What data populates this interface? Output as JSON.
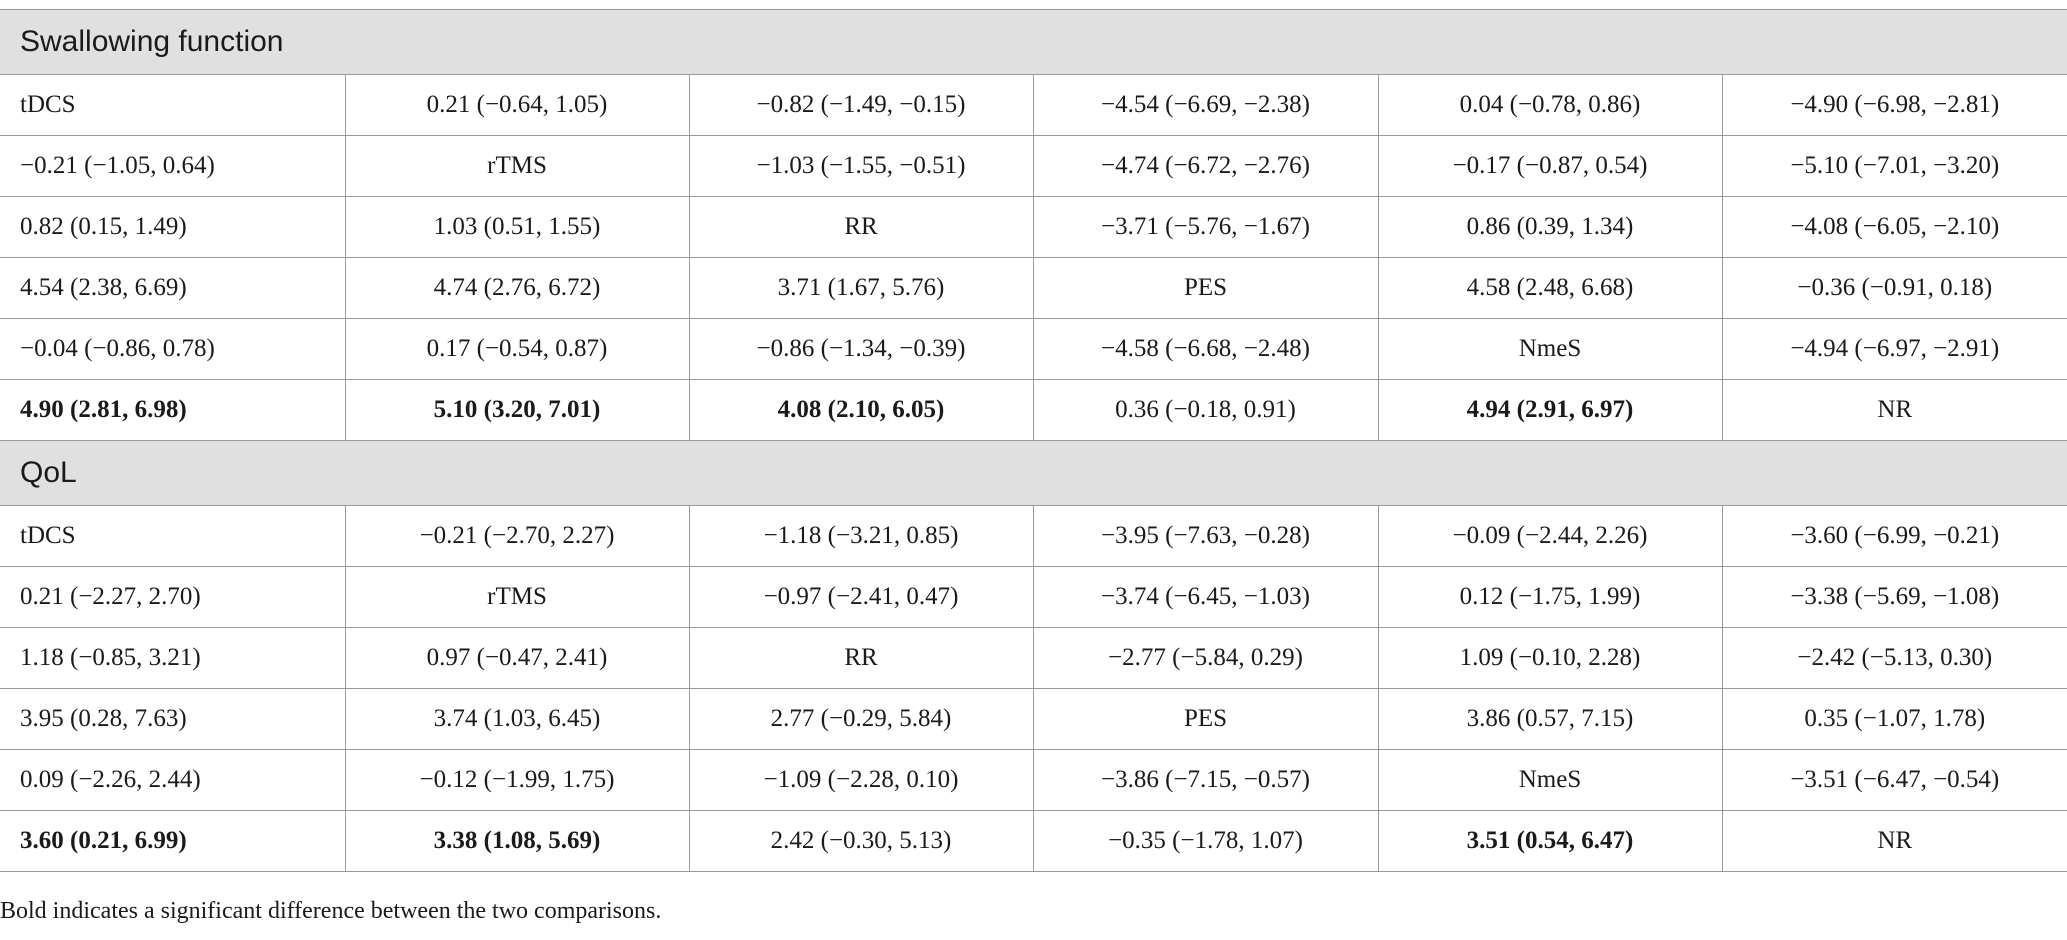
{
  "sections": [
    {
      "title": "Swallowing function",
      "rows": [
        {
          "cells": [
            "tDCS",
            "0.21 (−0.64, 1.05)",
            "−0.82 (−1.49, −0.15)",
            "−4.54 (−6.69, −2.38)",
            "0.04 (−0.78, 0.86)",
            "−4.90 (−6.98, −2.81)"
          ],
          "bold": [
            false,
            false,
            false,
            false,
            false,
            false
          ]
        },
        {
          "cells": [
            "−0.21 (−1.05, 0.64)",
            "rTMS",
            "−1.03 (−1.55, −0.51)",
            "−4.74 (−6.72, −2.76)",
            "−0.17 (−0.87, 0.54)",
            "−5.10 (−7.01, −3.20)"
          ],
          "bold": [
            false,
            false,
            false,
            false,
            false,
            false
          ]
        },
        {
          "cells": [
            "0.82 (0.15, 1.49)",
            "1.03 (0.51, 1.55)",
            "RR",
            "−3.71 (−5.76, −1.67)",
            "0.86 (0.39, 1.34)",
            "−4.08 (−6.05, −2.10)"
          ],
          "bold": [
            false,
            false,
            false,
            false,
            false,
            false
          ]
        },
        {
          "cells": [
            "4.54 (2.38, 6.69)",
            "4.74 (2.76, 6.72)",
            "3.71 (1.67, 5.76)",
            "PES",
            "4.58 (2.48, 6.68)",
            "−0.36 (−0.91, 0.18)"
          ],
          "bold": [
            false,
            false,
            false,
            false,
            false,
            false
          ]
        },
        {
          "cells": [
            "−0.04 (−0.86, 0.78)",
            "0.17 (−0.54, 0.87)",
            "−0.86 (−1.34, −0.39)",
            "−4.58 (−6.68, −2.48)",
            "NmeS",
            "−4.94 (−6.97, −2.91)"
          ],
          "bold": [
            false,
            false,
            false,
            false,
            false,
            false
          ]
        },
        {
          "cells": [
            "4.90 (2.81, 6.98)",
            "5.10 (3.20, 7.01)",
            "4.08 (2.10, 6.05)",
            "0.36 (−0.18, 0.91)",
            "4.94 (2.91, 6.97)",
            "NR"
          ],
          "bold": [
            true,
            true,
            true,
            false,
            true,
            false
          ]
        }
      ]
    },
    {
      "title": "QoL",
      "rows": [
        {
          "cells": [
            "tDCS",
            "−0.21 (−2.70, 2.27)",
            "−1.18 (−3.21, 0.85)",
            "−3.95 (−7.63, −0.28)",
            "−0.09 (−2.44, 2.26)",
            "−3.60 (−6.99, −0.21)"
          ],
          "bold": [
            false,
            false,
            false,
            false,
            false,
            false
          ]
        },
        {
          "cells": [
            "0.21 (−2.27, 2.70)",
            "rTMS",
            "−0.97 (−2.41, 0.47)",
            "−3.74 (−6.45, −1.03)",
            "0.12 (−1.75, 1.99)",
            "−3.38 (−5.69, −1.08)"
          ],
          "bold": [
            false,
            false,
            false,
            false,
            false,
            false
          ]
        },
        {
          "cells": [
            "1.18 (−0.85, 3.21)",
            "0.97 (−0.47, 2.41)",
            "RR",
            "−2.77 (−5.84, 0.29)",
            "1.09 (−0.10, 2.28)",
            "−2.42 (−5.13, 0.30)"
          ],
          "bold": [
            false,
            false,
            false,
            false,
            false,
            false
          ]
        },
        {
          "cells": [
            "3.95 (0.28, 7.63)",
            "3.74 (1.03, 6.45)",
            "2.77 (−0.29, 5.84)",
            "PES",
            "3.86 (0.57, 7.15)",
            "0.35 (−1.07, 1.78)"
          ],
          "bold": [
            false,
            false,
            false,
            false,
            false,
            false
          ]
        },
        {
          "cells": [
            "0.09 (−2.26, 2.44)",
            "−0.12 (−1.99, 1.75)",
            "−1.09 (−2.28, 0.10)",
            "−3.86 (−7.15, −0.57)",
            "NmeS",
            "−3.51 (−6.47, −0.54)"
          ],
          "bold": [
            false,
            false,
            false,
            false,
            false,
            false
          ]
        },
        {
          "cells": [
            "3.60 (0.21, 6.99)",
            "3.38 (1.08, 5.69)",
            "2.42 (−0.30, 5.13)",
            "−0.35 (−1.78, 1.07)",
            "3.51 (0.54, 6.47)",
            "NR"
          ],
          "bold": [
            true,
            true,
            false,
            false,
            true,
            false
          ]
        }
      ]
    }
  ],
  "footnote": "Bold indicates a significant difference between the two comparisons."
}
